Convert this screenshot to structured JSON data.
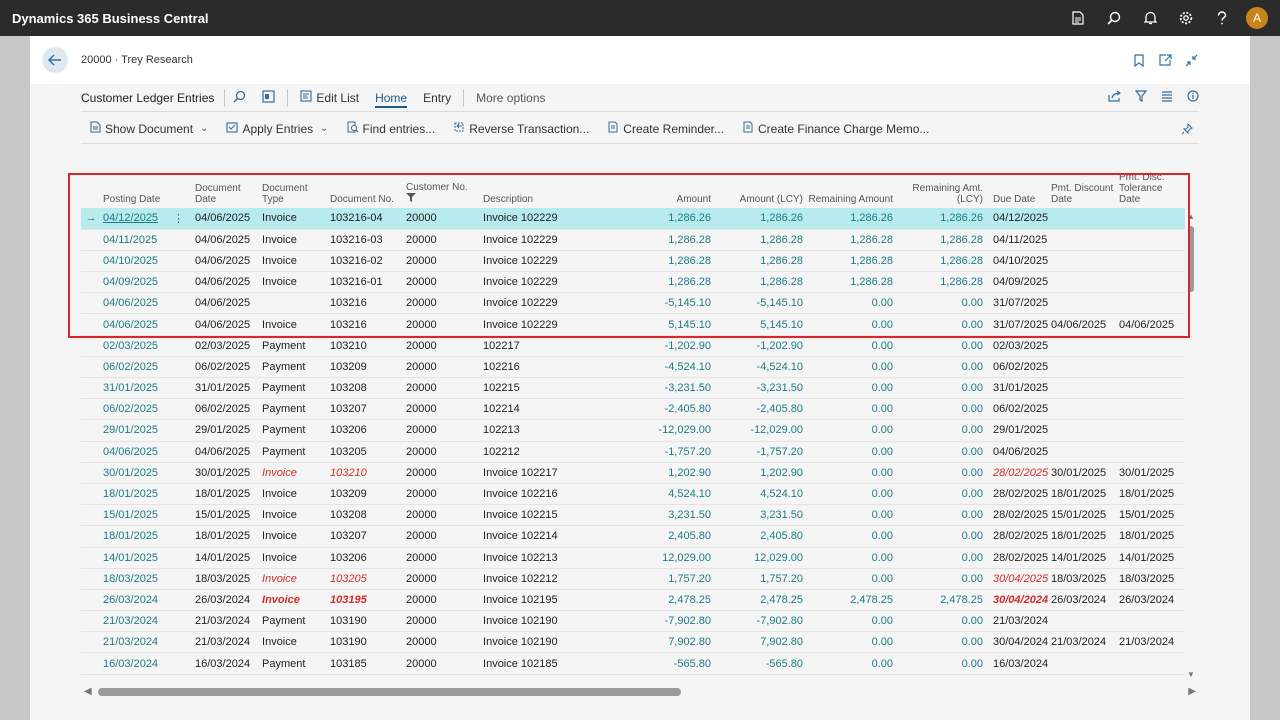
{
  "app": {
    "title": "Dynamics 365 Business Central",
    "avatar_initial": "A"
  },
  "page": {
    "breadcrumb": "20000 · Trey Research"
  },
  "actionbar": {
    "title": "Customer Ledger Entries",
    "edit_list": "Edit List",
    "home": "Home",
    "entry": "Entry",
    "more": "More options"
  },
  "commands": {
    "show_document": "Show Document",
    "apply_entries": "Apply Entries",
    "find_entries": "Find entries...",
    "reverse": "Reverse Transaction...",
    "reminder": "Create Reminder...",
    "finance": "Create Finance Charge Memo..."
  },
  "columns": {
    "posting_date": "Posting Date",
    "document_date": "Document Date",
    "document_type": "Document Type",
    "document_no": "Document No.",
    "customer_no": "Customer No.",
    "description": "Description",
    "amount": "Amount",
    "amount_lcy": "Amount (LCY)",
    "remaining_amount": "Remaining Amount",
    "remaining_amt_lcy": "Remaining Amt. (LCY)",
    "due_date": "Due Date",
    "pmt_discount_date": "Pmt. Discount Date",
    "pmt_disc_tolerance_date": "Pmt. Disc. Tolerance Date"
  },
  "rows": [
    {
      "pd": "04/12/2025",
      "dd": "04/06/2025",
      "dt": "Invoice",
      "dn": "103216-04",
      "cn": "20000",
      "desc": "Invoice 102229",
      "amt": "1,286.26",
      "lcy": "1,286.26",
      "rem": "1,286.26",
      "reml": "1,286.26",
      "due": "04/12/2025",
      "pdd": "",
      "ptd": "",
      "style": "sel"
    },
    {
      "pd": "04/11/2025",
      "dd": "04/06/2025",
      "dt": "Invoice",
      "dn": "103216-03",
      "cn": "20000",
      "desc": "Invoice 102229",
      "amt": "1,286.28",
      "lcy": "1,286.28",
      "rem": "1,286.28",
      "reml": "1,286.28",
      "due": "04/11/2025",
      "pdd": "",
      "ptd": "",
      "style": ""
    },
    {
      "pd": "04/10/2025",
      "dd": "04/06/2025",
      "dt": "Invoice",
      "dn": "103216-02",
      "cn": "20000",
      "desc": "Invoice 102229",
      "amt": "1,286.28",
      "lcy": "1,286.28",
      "rem": "1,286.28",
      "reml": "1,286.28",
      "due": "04/10/2025",
      "pdd": "",
      "ptd": "",
      "style": ""
    },
    {
      "pd": "04/09/2025",
      "dd": "04/06/2025",
      "dt": "Invoice",
      "dn": "103216-01",
      "cn": "20000",
      "desc": "Invoice 102229",
      "amt": "1,286.28",
      "lcy": "1,286.28",
      "rem": "1,286.28",
      "reml": "1,286.28",
      "due": "04/09/2025",
      "pdd": "",
      "ptd": "",
      "style": ""
    },
    {
      "pd": "04/06/2025",
      "dd": "04/06/2025",
      "dt": "",
      "dn": "103216",
      "cn": "20000",
      "desc": "Invoice 102229",
      "amt": "-5,145.10",
      "lcy": "-5,145.10",
      "rem": "0.00",
      "reml": "0.00",
      "due": "31/07/2025",
      "pdd": "",
      "ptd": "",
      "style": ""
    },
    {
      "pd": "04/06/2025",
      "dd": "04/06/2025",
      "dt": "Invoice",
      "dn": "103216",
      "cn": "20000",
      "desc": "Invoice 102229",
      "amt": "5,145.10",
      "lcy": "5,145.10",
      "rem": "0.00",
      "reml": "0.00",
      "due": "31/07/2025",
      "pdd": "04/06/2025",
      "ptd": "04/06/2025",
      "style": ""
    },
    {
      "pd": "02/03/2025",
      "dd": "02/03/2025",
      "dt": "Payment",
      "dn": "103210",
      "cn": "20000",
      "desc": "102217",
      "amt": "-1,202.90",
      "lcy": "-1,202.90",
      "rem": "0.00",
      "reml": "0.00",
      "due": "02/03/2025",
      "pdd": "",
      "ptd": "",
      "style": ""
    },
    {
      "pd": "06/02/2025",
      "dd": "06/02/2025",
      "dt": "Payment",
      "dn": "103209",
      "cn": "20000",
      "desc": "102216",
      "amt": "-4,524.10",
      "lcy": "-4,524.10",
      "rem": "0.00",
      "reml": "0.00",
      "due": "06/02/2025",
      "pdd": "",
      "ptd": "",
      "style": ""
    },
    {
      "pd": "31/01/2025",
      "dd": "31/01/2025",
      "dt": "Payment",
      "dn": "103208",
      "cn": "20000",
      "desc": "102215",
      "amt": "-3,231.50",
      "lcy": "-3,231.50",
      "rem": "0.00",
      "reml": "0.00",
      "due": "31/01/2025",
      "pdd": "",
      "ptd": "",
      "style": ""
    },
    {
      "pd": "06/02/2025",
      "dd": "06/02/2025",
      "dt": "Payment",
      "dn": "103207",
      "cn": "20000",
      "desc": "102214",
      "amt": "-2,405.80",
      "lcy": "-2,405.80",
      "rem": "0.00",
      "reml": "0.00",
      "due": "06/02/2025",
      "pdd": "",
      "ptd": "",
      "style": ""
    },
    {
      "pd": "29/01/2025",
      "dd": "29/01/2025",
      "dt": "Payment",
      "dn": "103206",
      "cn": "20000",
      "desc": "102213",
      "amt": "-12,029.00",
      "lcy": "-12,029.00",
      "rem": "0.00",
      "reml": "0.00",
      "due": "29/01/2025",
      "pdd": "",
      "ptd": "",
      "style": ""
    },
    {
      "pd": "04/06/2025",
      "dd": "04/06/2025",
      "dt": "Payment",
      "dn": "103205",
      "cn": "20000",
      "desc": "102212",
      "amt": "-1,757.20",
      "lcy": "-1,757.20",
      "rem": "0.00",
      "reml": "0.00",
      "due": "04/06/2025",
      "pdd": "",
      "ptd": "",
      "style": ""
    },
    {
      "pd": "30/01/2025",
      "dd": "30/01/2025",
      "dt": "Invoice",
      "dn": "103210",
      "cn": "20000",
      "desc": "Invoice 102217",
      "amt": "1,202.90",
      "lcy": "1,202.90",
      "rem": "0.00",
      "reml": "0.00",
      "due": "28/02/2025",
      "pdd": "30/01/2025",
      "ptd": "30/01/2025",
      "style": "red"
    },
    {
      "pd": "18/01/2025",
      "dd": "18/01/2025",
      "dt": "Invoice",
      "dn": "103209",
      "cn": "20000",
      "desc": "Invoice 102216",
      "amt": "4,524.10",
      "lcy": "4,524.10",
      "rem": "0.00",
      "reml": "0.00",
      "due": "28/02/2025",
      "pdd": "18/01/2025",
      "ptd": "18/01/2025",
      "style": ""
    },
    {
      "pd": "15/01/2025",
      "dd": "15/01/2025",
      "dt": "Invoice",
      "dn": "103208",
      "cn": "20000",
      "desc": "Invoice 102215",
      "amt": "3,231.50",
      "lcy": "3,231.50",
      "rem": "0.00",
      "reml": "0.00",
      "due": "28/02/2025",
      "pdd": "15/01/2025",
      "ptd": "15/01/2025",
      "style": ""
    },
    {
      "pd": "18/01/2025",
      "dd": "18/01/2025",
      "dt": "Invoice",
      "dn": "103207",
      "cn": "20000",
      "desc": "Invoice 102214",
      "amt": "2,405.80",
      "lcy": "2,405.80",
      "rem": "0.00",
      "reml": "0.00",
      "due": "28/02/2025",
      "pdd": "18/01/2025",
      "ptd": "18/01/2025",
      "style": ""
    },
    {
      "pd": "14/01/2025",
      "dd": "14/01/2025",
      "dt": "Invoice",
      "dn": "103206",
      "cn": "20000",
      "desc": "Invoice 102213",
      "amt": "12,029.00",
      "lcy": "12,029.00",
      "rem": "0.00",
      "reml": "0.00",
      "due": "28/02/2025",
      "pdd": "14/01/2025",
      "ptd": "14/01/2025",
      "style": ""
    },
    {
      "pd": "18/03/2025",
      "dd": "18/03/2025",
      "dt": "Invoice",
      "dn": "103205",
      "cn": "20000",
      "desc": "Invoice 102212",
      "amt": "1,757.20",
      "lcy": "1,757.20",
      "rem": "0.00",
      "reml": "0.00",
      "due": "30/04/2025",
      "pdd": "18/03/2025",
      "ptd": "18/03/2025",
      "style": "red"
    },
    {
      "pd": "26/03/2024",
      "dd": "26/03/2024",
      "dt": "Invoice",
      "dn": "103195",
      "cn": "20000",
      "desc": "Invoice 102195",
      "amt": "2,478.25",
      "lcy": "2,478.25",
      "rem": "2,478.25",
      "reml": "2,478.25",
      "due": "30/04/2024",
      "pdd": "26/03/2024",
      "ptd": "26/03/2024",
      "style": "bold"
    },
    {
      "pd": "21/03/2024",
      "dd": "21/03/2024",
      "dt": "Payment",
      "dn": "103190",
      "cn": "20000",
      "desc": "Invoice 102190",
      "amt": "-7,902.80",
      "lcy": "-7,902.80",
      "rem": "0.00",
      "reml": "0.00",
      "due": "21/03/2024",
      "pdd": "",
      "ptd": "",
      "style": ""
    },
    {
      "pd": "21/03/2024",
      "dd": "21/03/2024",
      "dt": "Invoice",
      "dn": "103190",
      "cn": "20000",
      "desc": "Invoice 102190",
      "amt": "7,902.80",
      "lcy": "7,902.80",
      "rem": "0.00",
      "reml": "0.00",
      "due": "30/04/2024",
      "pdd": "21/03/2024",
      "ptd": "21/03/2024",
      "style": ""
    },
    {
      "pd": "16/03/2024",
      "dd": "16/03/2024",
      "dt": "Payment",
      "dn": "103185",
      "cn": "20000",
      "desc": "Invoice 102185",
      "amt": "-565.80",
      "lcy": "-565.80",
      "rem": "0.00",
      "reml": "0.00",
      "due": "16/03/2024",
      "pdd": "",
      "ptd": "",
      "style": ""
    }
  ],
  "colors": {
    "appbar": "#2b2b2b",
    "link": "#1c7b87",
    "selected": "#b8ebed",
    "overdue": "#d12c2c",
    "highlight": "#d9252c"
  }
}
